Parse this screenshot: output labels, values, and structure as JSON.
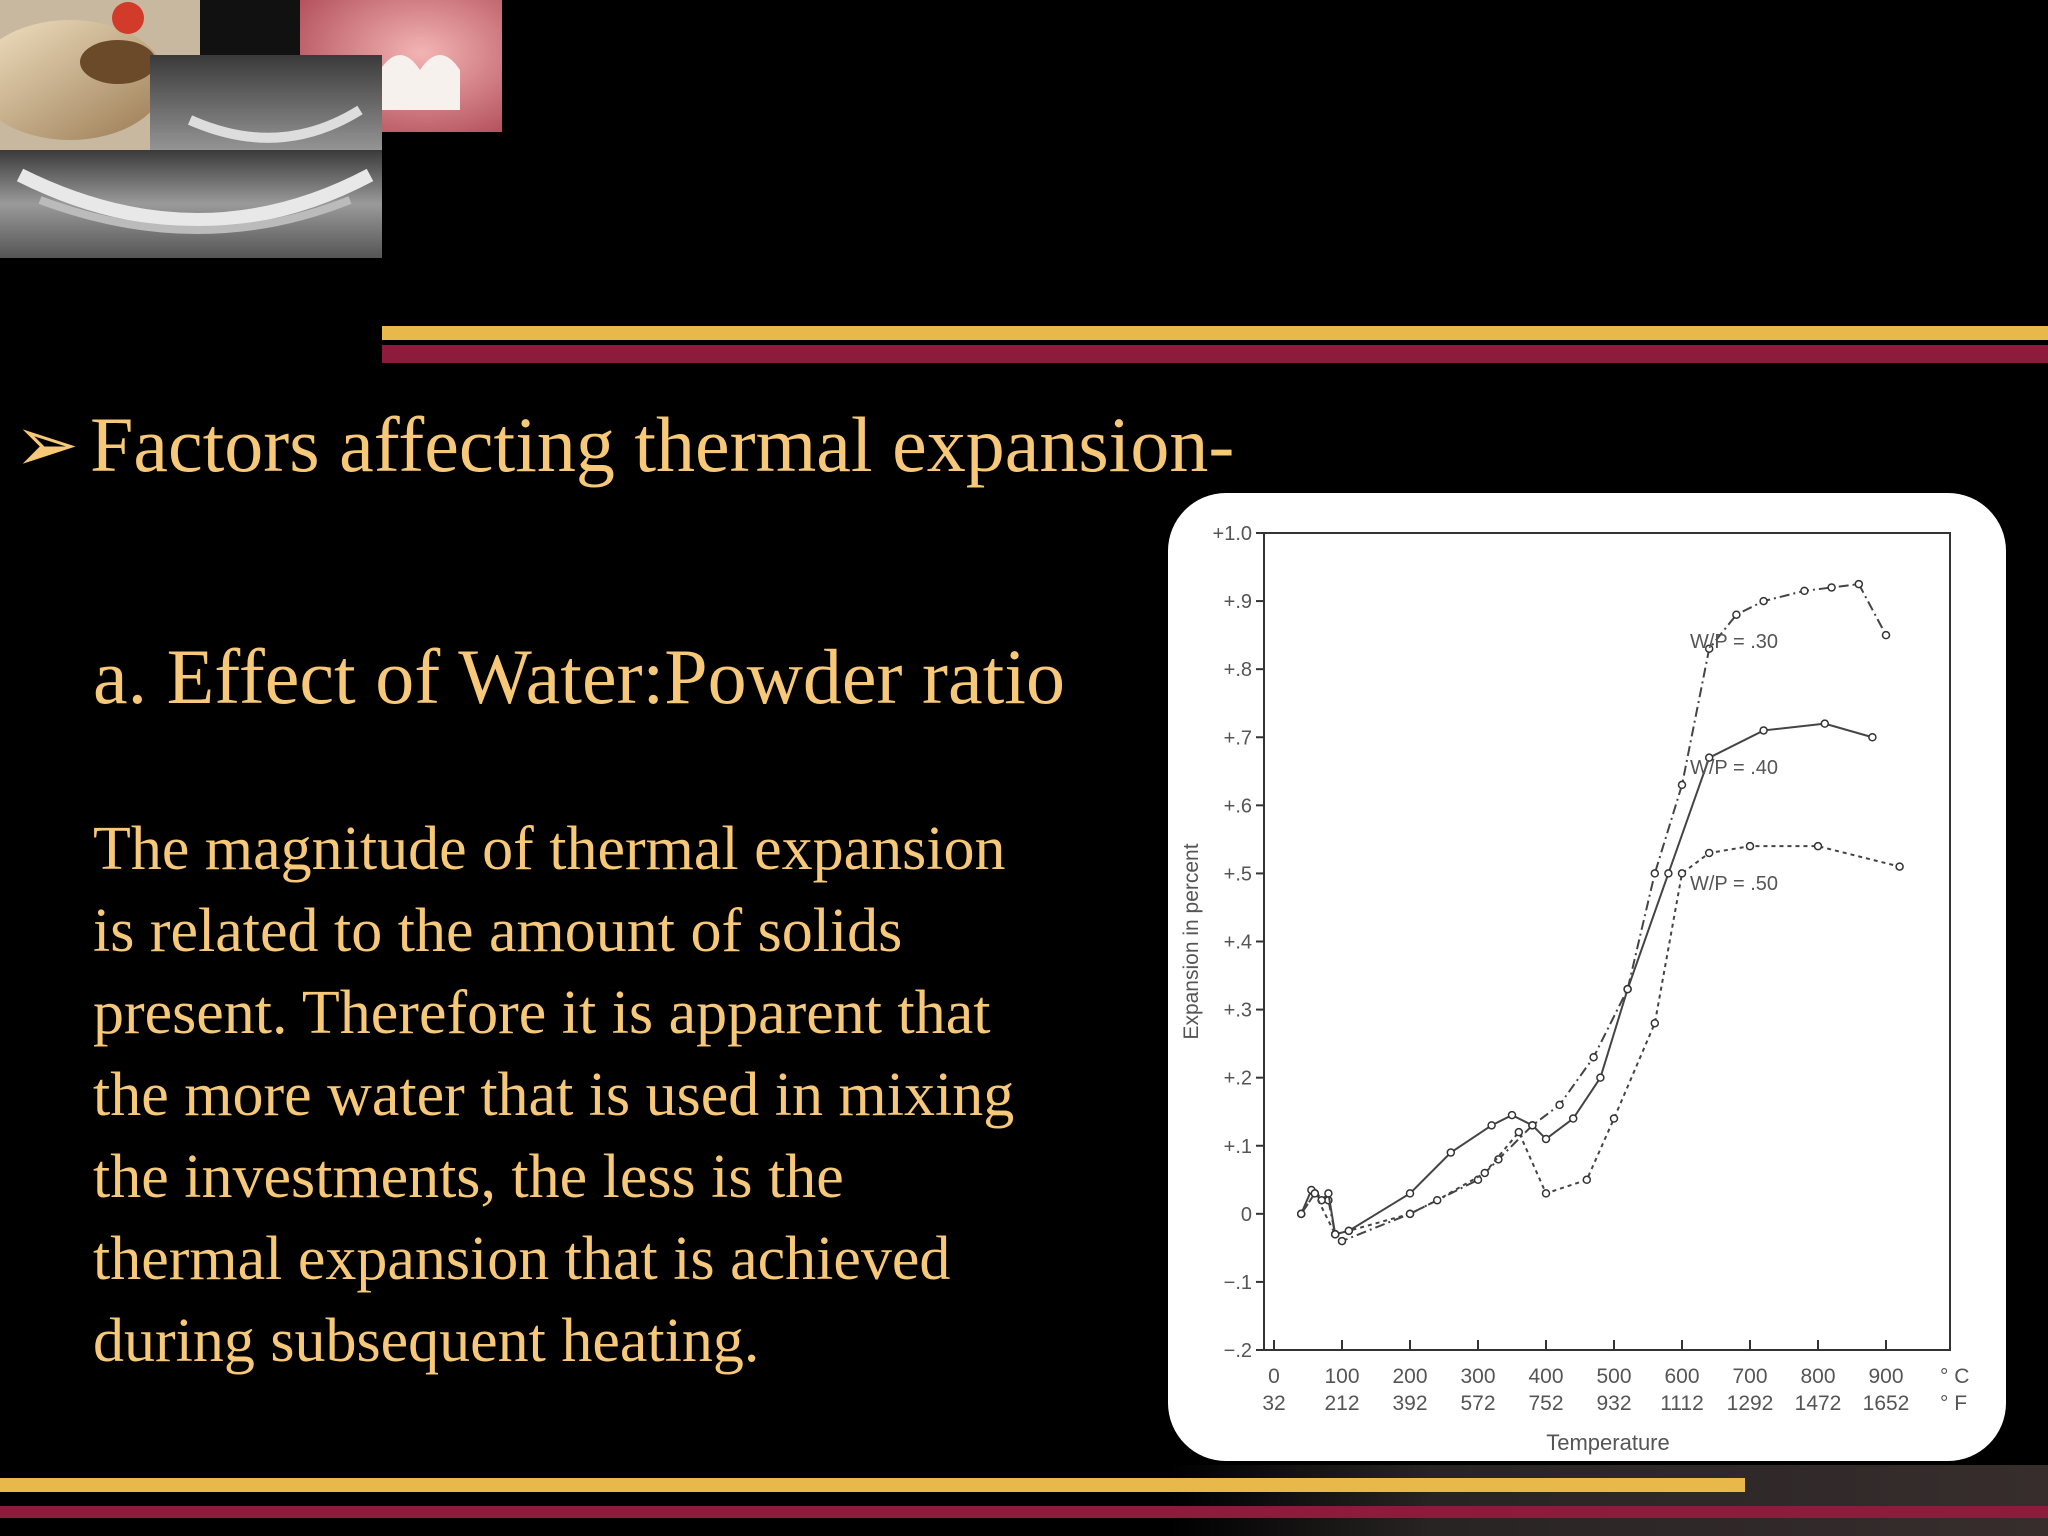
{
  "slide": {
    "bullet_symbol": "➢",
    "heading": "Factors affecting thermal expansion-",
    "subheading": "a. Effect of Water:Powder ratio",
    "body_lines": [
      "The magnitude of thermal expansion",
      "is related to the amount of solids",
      "present. Therefore it is apparent that",
      "the more water that is used in mixing",
      "the investments, the less is the",
      "thermal expansion that is achieved",
      "during subsequent heating."
    ]
  },
  "colors": {
    "text": "#f6c878",
    "band_gold": "#e8b94a",
    "band_maroon": "#8c1b3c",
    "background": "#000000"
  },
  "chart_data": {
    "type": "line",
    "xlabel": "Temperature",
    "ylabel": "Expansion in percent",
    "xlim": [
      0,
      1000
    ],
    "ylim": [
      -0.2,
      1.0
    ],
    "x_ticks": [
      {
        "c": "0",
        "f": "32"
      },
      {
        "c": "100",
        "f": "212"
      },
      {
        "c": "200",
        "f": "392"
      },
      {
        "c": "300",
        "f": "572"
      },
      {
        "c": "400",
        "f": "752"
      },
      {
        "c": "500",
        "f": "932"
      },
      {
        "c": "600",
        "f": "1112"
      },
      {
        "c": "700",
        "f": "1292"
      },
      {
        "c": "800",
        "f": "1472"
      },
      {
        "c": "900",
        "f": "1652"
      }
    ],
    "unit_labels": {
      "c": "° C",
      "f": "° F"
    },
    "y_ticks": [
      "+1.0",
      "+.9",
      "+.8",
      "+.7",
      "+.6",
      "+.5",
      "+.4",
      "+.3",
      "+.2",
      "+.1",
      "0",
      "−.1",
      "−.2"
    ],
    "y_tick_values": [
      1.0,
      0.9,
      0.8,
      0.7,
      0.6,
      0.5,
      0.4,
      0.3,
      0.2,
      0.1,
      0.0,
      -0.1,
      -0.2
    ],
    "series": [
      {
        "name": "W/P = .30",
        "dash": "10,4,2,4",
        "x": [
          40,
          60,
          80,
          90,
          100,
          200,
          300,
          330,
          380,
          420,
          470,
          520,
          560,
          600,
          640,
          680,
          720,
          780,
          820,
          860,
          900
        ],
        "y": [
          0.0,
          0.03,
          0.02,
          -0.03,
          -0.04,
          0.0,
          0.05,
          0.08,
          0.13,
          0.16,
          0.23,
          0.33,
          0.5,
          0.63,
          0.83,
          0.88,
          0.9,
          0.915,
          0.92,
          0.925,
          0.85
        ]
      },
      {
        "name": "W/P = .40",
        "dash": "",
        "x": [
          40,
          55,
          70,
          80,
          90,
          110,
          200,
          260,
          320,
          350,
          380,
          400,
          440,
          480,
          520,
          580,
          640,
          720,
          810,
          880
        ],
        "y": [
          0.0,
          0.035,
          0.02,
          0.03,
          -0.03,
          -0.025,
          0.03,
          0.09,
          0.13,
          0.145,
          0.13,
          0.11,
          0.14,
          0.2,
          0.33,
          0.5,
          0.67,
          0.71,
          0.72,
          0.7
        ]
      },
      {
        "name": "W/P = .50",
        "dash": "4,4",
        "x": [
          40,
          60,
          90,
          110,
          200,
          240,
          310,
          360,
          400,
          460,
          500,
          560,
          600,
          640,
          700,
          800,
          920
        ],
        "y": [
          0.0,
          0.03,
          -0.03,
          -0.025,
          0.0,
          0.02,
          0.06,
          0.12,
          0.03,
          0.05,
          0.14,
          0.28,
          0.5,
          0.53,
          0.54,
          0.54,
          0.51
        ]
      }
    ]
  }
}
